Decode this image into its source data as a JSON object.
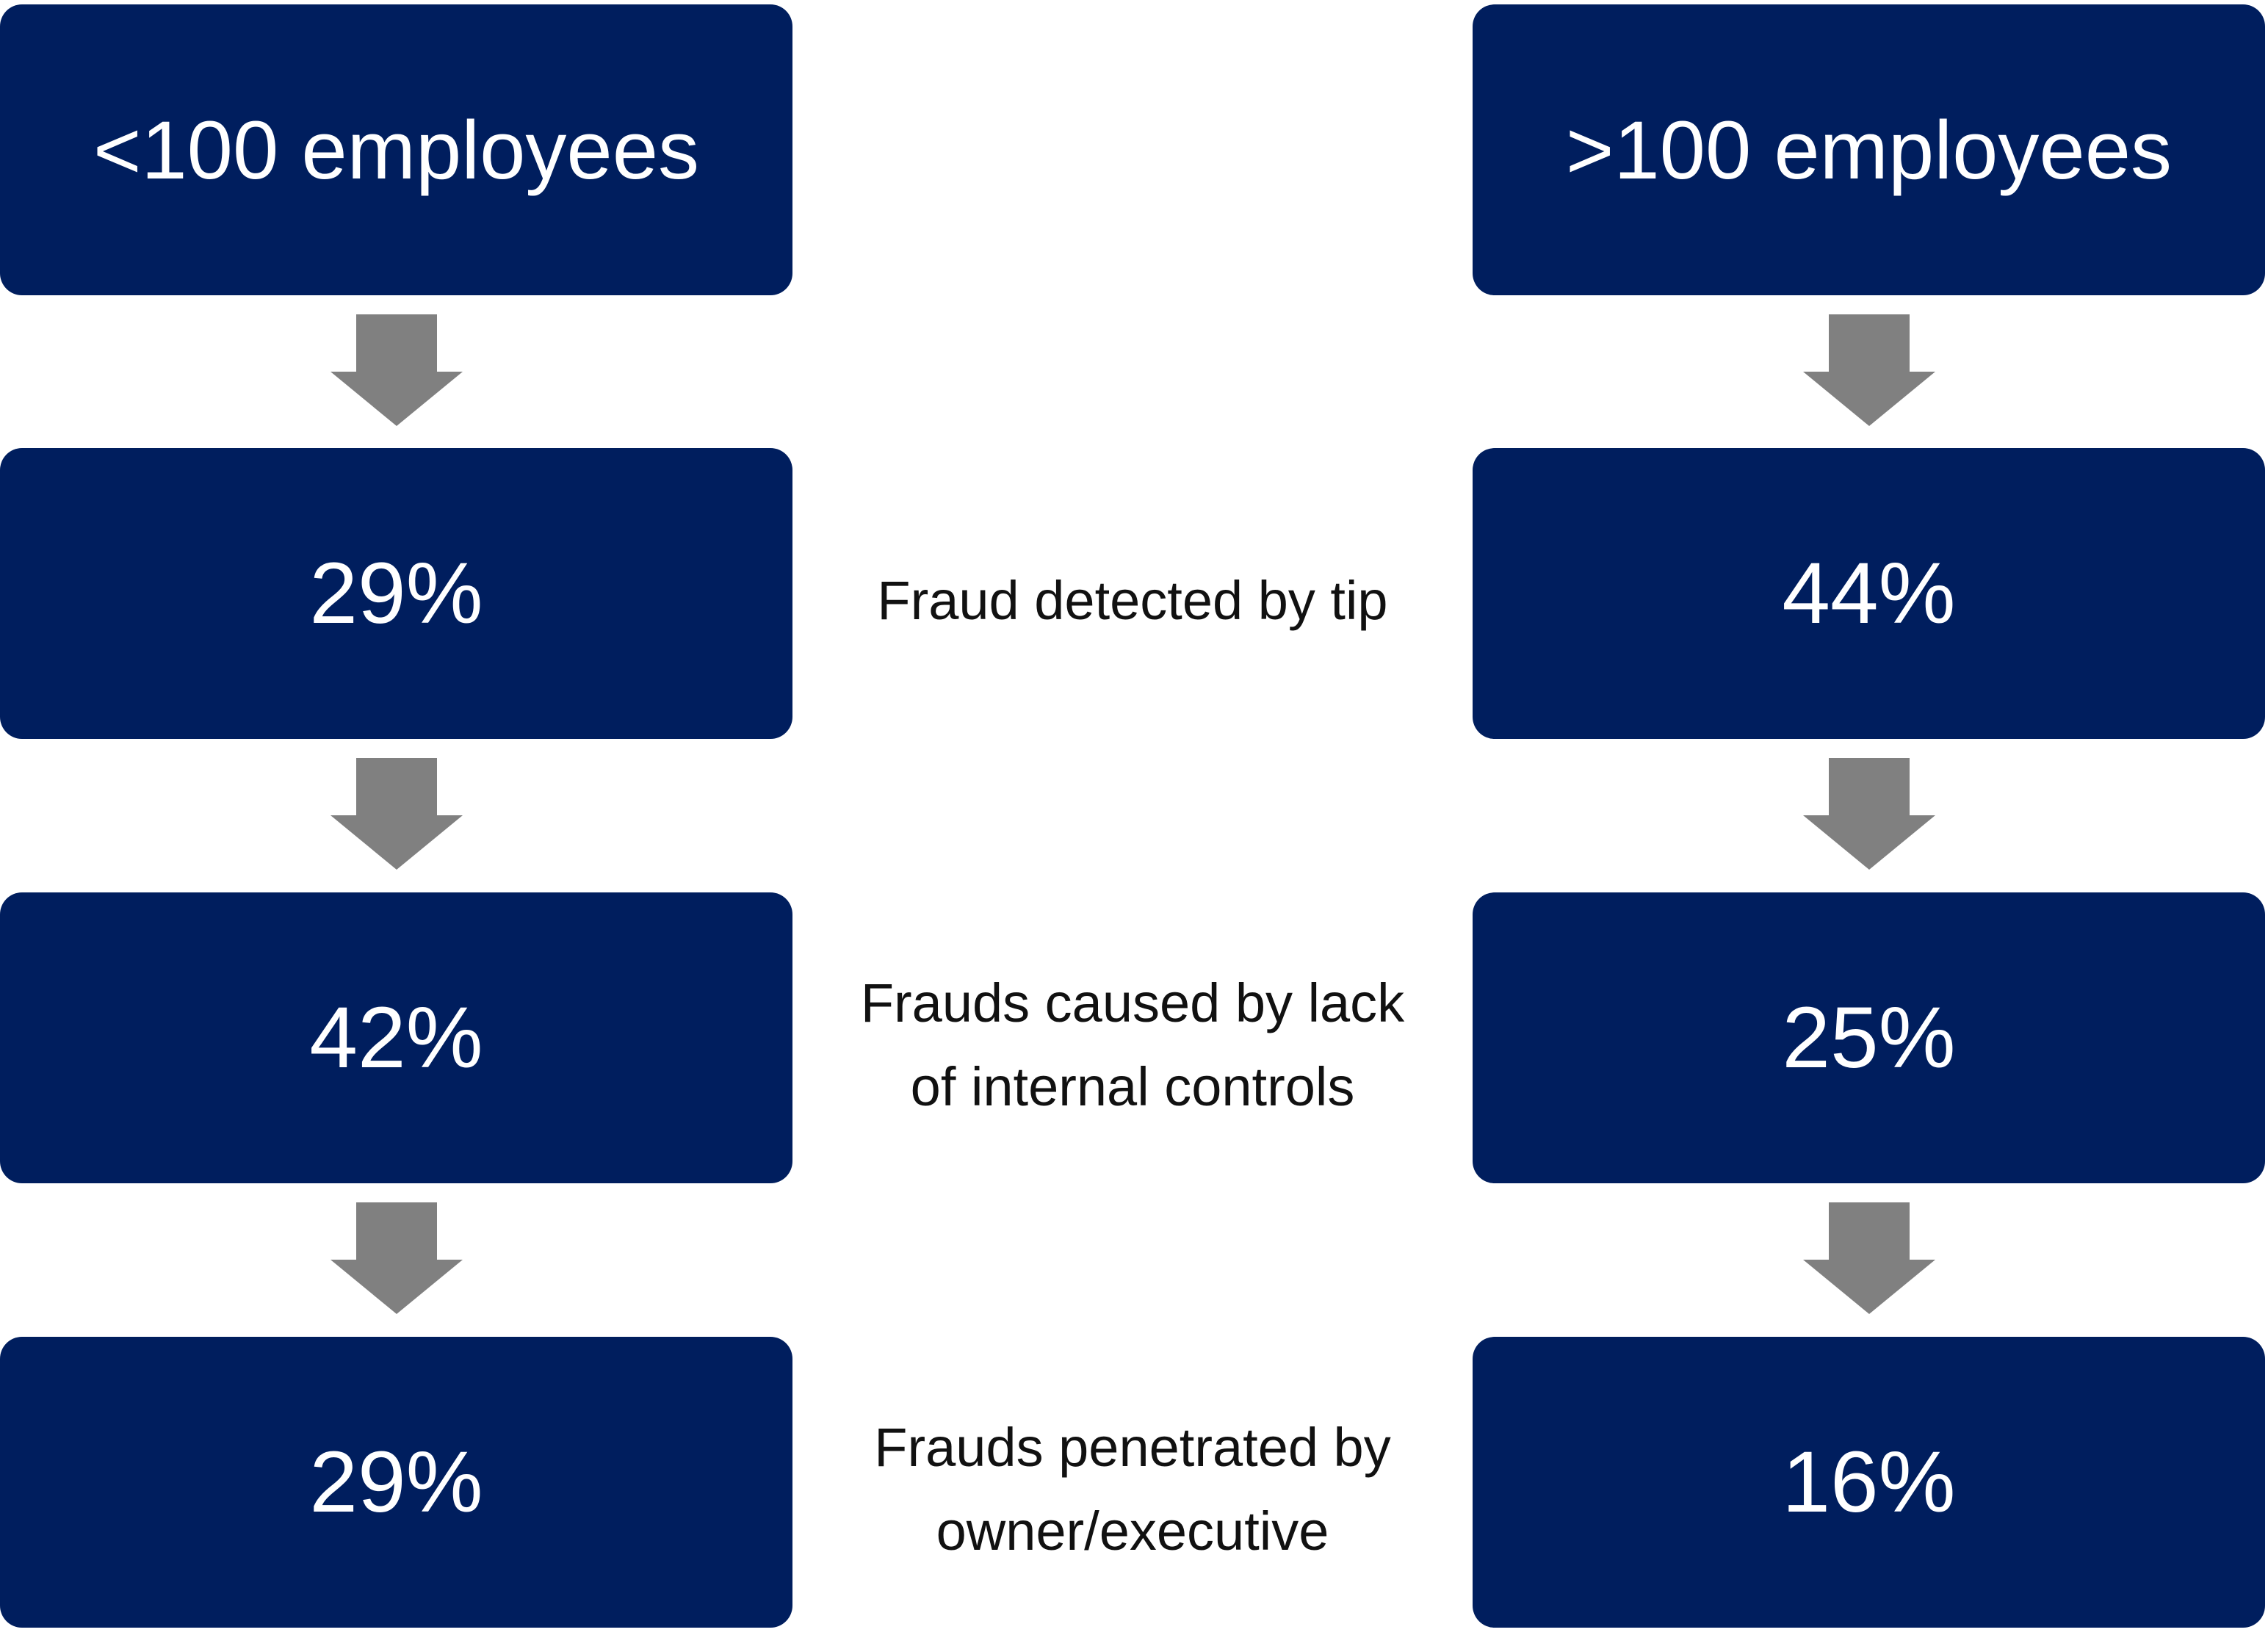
{
  "columns": [
    {
      "header": "<100 employees",
      "values": [
        "29%",
        "42%",
        "29%"
      ]
    },
    {
      "header": ">100 employees",
      "values": [
        "44%",
        "25%",
        "16%"
      ]
    }
  ],
  "rows": [
    {
      "label": [
        "Fraud detected by tip"
      ]
    },
    {
      "label": [
        "Frauds caused by lack",
        "of internal controls"
      ]
    },
    {
      "label": [
        "Frauds penetrated by",
        "owner/executive"
      ]
    }
  ]
}
